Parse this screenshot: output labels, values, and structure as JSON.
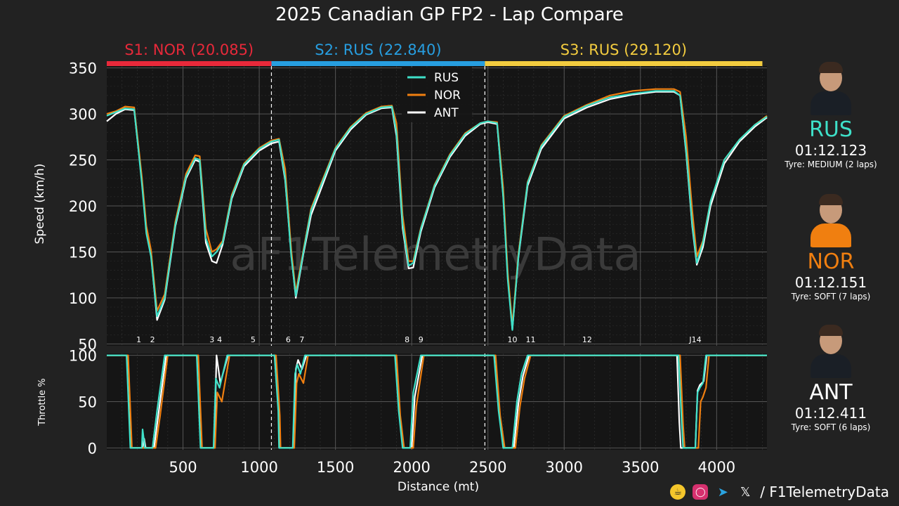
{
  "title": "2025 Canadian GP FP2 - Lap Compare",
  "colors": {
    "RUS": "#3ee0c8",
    "NOR": "#f07f10",
    "ANT": "#ffffff"
  },
  "drivers": [
    {
      "code": "RUS",
      "lap_time": "01:12.123",
      "tyre": "Tyre: MEDIUM (2 laps)",
      "color": "#3ee0c8",
      "suit": "#1a1f26"
    },
    {
      "code": "NOR",
      "lap_time": "01:12.151",
      "tyre": "Tyre: SOFT (7 laps)",
      "color": "#f07f10",
      "suit": "#f07f10"
    },
    {
      "code": "ANT",
      "lap_time": "01:12.411",
      "tyre": "Tyre: SOFT (6 laps)",
      "color": "#ffffff",
      "suit": "#1a1f26"
    }
  ],
  "watermark": "aF1TelemetryData",
  "footer": {
    "handle": "/ F1TelemetryData",
    "icons": [
      "coffee-icon",
      "instagram-icon",
      "telegram-icon",
      "x-icon"
    ]
  },
  "chart_data": {
    "type": "line",
    "xlabel": "Distance (mt)",
    "xlim": [
      0,
      4330
    ],
    "x_ticks": [
      500,
      1000,
      1500,
      2000,
      2500,
      3000,
      3500,
      4000
    ],
    "sectors": [
      {
        "label": "S1: NOR (20.085)",
        "start": 0,
        "end": 1080,
        "color": "#e8293a"
      },
      {
        "label": "S2: RUS (22.840)",
        "start": 1080,
        "end": 2480,
        "color": "#279ee0"
      },
      {
        "label": "S3: RUS (29.120)",
        "start": 2480,
        "end": 4300,
        "color": "#f3cc3f"
      }
    ],
    "sector_boundaries": [
      1080,
      2480
    ],
    "corners": [
      {
        "label": "1",
        "x": 210
      },
      {
        "label": "2",
        "x": 300
      },
      {
        "label": "3",
        "x": 690
      },
      {
        "label": "4",
        "x": 740
      },
      {
        "label": "5",
        "x": 960
      },
      {
        "label": "6",
        "x": 1190
      },
      {
        "label": "7",
        "x": 1280
      },
      {
        "label": "8",
        "x": 1970
      },
      {
        "label": "9",
        "x": 2060
      },
      {
        "label": "10",
        "x": 2660
      },
      {
        "label": "11",
        "x": 2780
      },
      {
        "label": "12",
        "x": 3150
      },
      {
        "label": "J14",
        "x": 3860
      }
    ],
    "speed": {
      "ylabel": "Speed (km/h)",
      "ylim": [
        48,
        352
      ],
      "y_ticks": [
        50,
        100,
        150,
        200,
        250,
        300,
        350
      ],
      "legend": [
        "RUS",
        "NOR",
        "ANT"
      ],
      "series": [
        {
          "name": "RUS",
          "x": [
            0,
            60,
            120,
            180,
            230,
            260,
            290,
            330,
            380,
            450,
            520,
            580,
            610,
            650,
            690,
            720,
            760,
            820,
            900,
            1000,
            1080,
            1130,
            1170,
            1210,
            1240,
            1290,
            1340,
            1400,
            1500,
            1600,
            1700,
            1800,
            1870,
            1900,
            1940,
            1980,
            2010,
            2060,
            2150,
            2250,
            2350,
            2450,
            2500,
            2560,
            2600,
            2630,
            2660,
            2700,
            2760,
            2850,
            3000,
            3150,
            3300,
            3450,
            3600,
            3720,
            3760,
            3800,
            3840,
            3870,
            3910,
            3960,
            4050,
            4150,
            4250,
            4330
          ],
          "values": [
            298,
            302,
            306,
            305,
            225,
            170,
            145,
            80,
            100,
            180,
            232,
            252,
            250,
            165,
            145,
            150,
            160,
            210,
            245,
            262,
            270,
            272,
            230,
            145,
            102,
            150,
            195,
            220,
            262,
            285,
            300,
            307,
            308,
            280,
            180,
            135,
            138,
            175,
            222,
            255,
            278,
            290,
            292,
            290,
            210,
            120,
            65,
            145,
            225,
            265,
            297,
            309,
            318,
            322,
            325,
            325,
            320,
            260,
            180,
            138,
            160,
            205,
            250,
            272,
            288,
            297
          ]
        },
        {
          "name": "NOR",
          "x": [
            0,
            60,
            120,
            180,
            230,
            260,
            290,
            330,
            380,
            450,
            520,
            580,
            610,
            650,
            690,
            720,
            760,
            820,
            900,
            1000,
            1080,
            1130,
            1170,
            1210,
            1240,
            1290,
            1340,
            1400,
            1500,
            1600,
            1700,
            1800,
            1870,
            1900,
            1940,
            1980,
            2010,
            2060,
            2150,
            2250,
            2350,
            2450,
            2500,
            2560,
            2600,
            2630,
            2660,
            2700,
            2760,
            2850,
            3000,
            3150,
            3300,
            3450,
            3600,
            3720,
            3760,
            3800,
            3840,
            3870,
            3910,
            3960,
            4050,
            4150,
            4250,
            4330
          ],
          "values": [
            300,
            303,
            308,
            307,
            232,
            178,
            152,
            86,
            104,
            183,
            235,
            255,
            254,
            175,
            150,
            153,
            162,
            212,
            246,
            263,
            271,
            273,
            240,
            152,
            106,
            152,
            197,
            222,
            263,
            286,
            301,
            308,
            309,
            290,
            190,
            140,
            140,
            176,
            223,
            256,
            279,
            290,
            292,
            291,
            220,
            128,
            70,
            148,
            226,
            266,
            298,
            310,
            320,
            325,
            327,
            327,
            324,
            275,
            195,
            145,
            162,
            205,
            250,
            272,
            288,
            298
          ]
        },
        {
          "name": "ANT",
          "x": [
            0,
            60,
            120,
            180,
            230,
            260,
            290,
            330,
            380,
            450,
            520,
            580,
            610,
            650,
            690,
            720,
            760,
            820,
            900,
            1000,
            1080,
            1130,
            1170,
            1210,
            1240,
            1290,
            1340,
            1400,
            1500,
            1600,
            1700,
            1800,
            1870,
            1900,
            1940,
            1980,
            2010,
            2060,
            2150,
            2250,
            2350,
            2450,
            2500,
            2560,
            2600,
            2630,
            2660,
            2700,
            2760,
            2850,
            3000,
            3150,
            3300,
            3450,
            3600,
            3720,
            3760,
            3800,
            3840,
            3870,
            3910,
            3960,
            4050,
            4150,
            4250,
            4330
          ],
          "values": [
            292,
            300,
            305,
            304,
            228,
            172,
            148,
            76,
            98,
            178,
            230,
            250,
            248,
            160,
            140,
            138,
            158,
            208,
            243,
            260,
            268,
            270,
            228,
            148,
            100,
            148,
            190,
            216,
            260,
            283,
            299,
            306,
            307,
            276,
            176,
            132,
            133,
            172,
            220,
            253,
            276,
            289,
            291,
            289,
            212,
            124,
            66,
            144,
            222,
            262,
            295,
            307,
            316,
            321,
            324,
            324,
            320,
            258,
            178,
            136,
            155,
            200,
            246,
            270,
            286,
            296
          ]
        }
      ]
    },
    "throttle": {
      "ylabel": "Throttle %",
      "ylim": [
        -2,
        102
      ],
      "y_ticks": [
        0,
        50,
        100
      ],
      "series": [
        {
          "name": "RUS",
          "x": [
            0,
            130,
            155,
            230,
            235,
            250,
            265,
            300,
            330,
            380,
            590,
            615,
            640,
            660,
            700,
            715,
            740,
            790,
            1100,
            1125,
            1130,
            1220,
            1235,
            1250,
            1270,
            1300,
            1360,
            1890,
            1915,
            1940,
            1990,
            2010,
            2060,
            2540,
            2570,
            2600,
            2660,
            2690,
            2720,
            2760,
            3750,
            3770,
            3780,
            3860,
            3875,
            3890,
            3910,
            3930,
            4330
          ],
          "values": [
            100,
            100,
            0,
            0,
            20,
            0,
            0,
            0,
            40,
            100,
            100,
            0,
            0,
            0,
            0,
            75,
            65,
            100,
            100,
            40,
            0,
            0,
            80,
            90,
            80,
            100,
            100,
            100,
            40,
            0,
            0,
            60,
            100,
            100,
            40,
            0,
            0,
            50,
            80,
            100,
            100,
            30,
            0,
            0,
            60,
            65,
            70,
            100,
            100
          ]
        },
        {
          "name": "NOR",
          "x": [
            0,
            140,
            165,
            240,
            250,
            260,
            280,
            320,
            350,
            400,
            600,
            625,
            650,
            670,
            710,
            725,
            755,
            805,
            1110,
            1135,
            1140,
            1230,
            1245,
            1260,
            1290,
            1320,
            1380,
            1900,
            1925,
            1950,
            2010,
            2030,
            2080,
            2550,
            2580,
            2610,
            2680,
            2710,
            2740,
            2780,
            3760,
            3780,
            3790,
            3880,
            3895,
            3910,
            3930,
            3950,
            4330
          ],
          "values": [
            100,
            100,
            0,
            0,
            0,
            0,
            0,
            0,
            35,
            100,
            100,
            0,
            0,
            0,
            0,
            60,
            50,
            100,
            100,
            35,
            0,
            0,
            70,
            80,
            70,
            100,
            100,
            100,
            35,
            0,
            0,
            45,
            100,
            100,
            35,
            0,
            0,
            45,
            75,
            100,
            100,
            25,
            0,
            0,
            50,
            55,
            65,
            100,
            100
          ]
        },
        {
          "name": "ANT",
          "x": [
            0,
            135,
            160,
            235,
            245,
            255,
            275,
            310,
            340,
            390,
            595,
            620,
            645,
            665,
            705,
            720,
            745,
            795,
            1105,
            1130,
            1135,
            1225,
            1240,
            1255,
            1280,
            1310,
            1370,
            1895,
            1920,
            1945,
            2000,
            2020,
            2070,
            2545,
            2575,
            2605,
            2670,
            2700,
            2730,
            2770,
            3740,
            3755,
            3765,
            3860,
            3875,
            3890,
            3915,
            3935,
            4330
          ],
          "values": [
            100,
            100,
            0,
            0,
            10,
            0,
            0,
            0,
            38,
            100,
            100,
            0,
            0,
            0,
            0,
            100,
            70,
            100,
            100,
            38,
            0,
            0,
            85,
            95,
            85,
            100,
            100,
            100,
            38,
            0,
            0,
            55,
            100,
            100,
            38,
            0,
            0,
            48,
            78,
            100,
            100,
            28,
            0,
            0,
            62,
            68,
            72,
            100,
            100
          ]
        }
      ]
    }
  }
}
